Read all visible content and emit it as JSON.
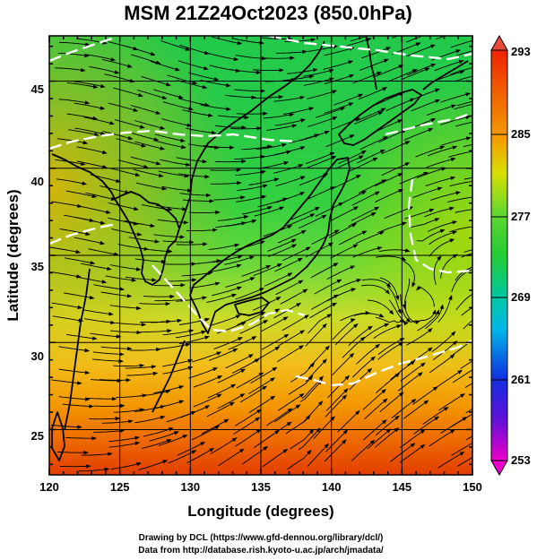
{
  "title": "MSM 21Z24Oct2023 (850.0hPa)",
  "x_axis": {
    "label": "Longitude (degrees)",
    "range": [
      120,
      150
    ],
    "ticks": [
      "120",
      "125",
      "130",
      "135",
      "140",
      "145",
      "150"
    ]
  },
  "y_axis": {
    "label": "Latitude  (degrees)",
    "range": [
      22.4,
      47.6
    ],
    "ticks": [
      "25",
      "30",
      "35",
      "40",
      "45"
    ]
  },
  "colorbar": {
    "labels": [
      "293",
      "285",
      "277",
      "269",
      "261",
      "253"
    ],
    "range": [
      253,
      293
    ],
    "colors": {
      "top": "#ee2200",
      "upper": "#f4a000",
      "mid_high": "#d8e000",
      "mid": "#22cc33",
      "mid_low": "#00c8c0",
      "low": "#1030e0",
      "bottom": "#ee00cc"
    }
  },
  "credits": {
    "line1": "Drawing by DCL (https://www.gfd-dennou.org/library/dcl/)",
    "line2": "Data from http://database.rish.kyoto-u.ac.jp/arch/jmadata/"
  }
}
